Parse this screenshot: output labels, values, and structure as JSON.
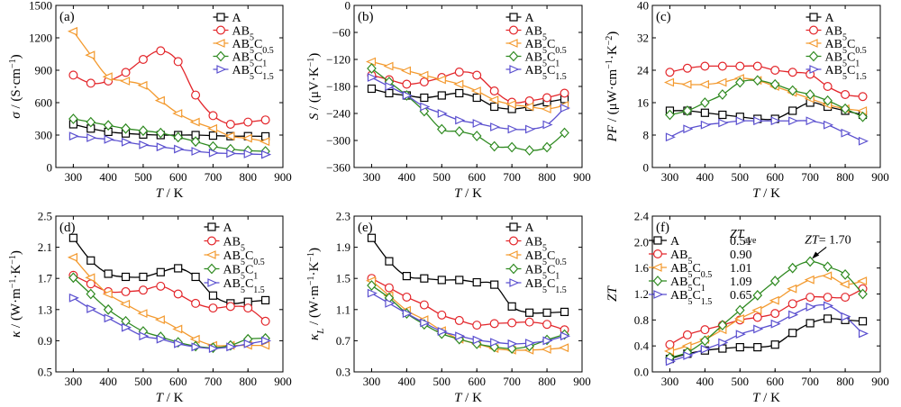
{
  "colors": {
    "A": "#000000",
    "AB5": "#e3262b",
    "AB5C0.5": "#f39a2f",
    "AB5C1": "#2f8a21",
    "AB5C1.5": "#5a4fcf"
  },
  "markers": {
    "A": "square",
    "AB5": "circle",
    "AB5C0.5": "triangle-left",
    "AB5C1": "diamond",
    "AB5C1.5": "triangle-right"
  },
  "chart_data": [
    {
      "type": "line",
      "panel": "(a)",
      "xlabel": "T / K",
      "ylabel": "σ / (S·cm⁻¹)",
      "xlim": [
        250,
        900
      ],
      "ylim": [
        0,
        1500
      ],
      "xticks": [
        300,
        400,
        500,
        600,
        700,
        800,
        900
      ],
      "yticks": [
        0,
        300,
        600,
        900,
        1200,
        1500
      ],
      "legend": "top-right",
      "series": [
        {
          "name": "A",
          "x": [
            300,
            350,
            400,
            450,
            500,
            550,
            600,
            650,
            700,
            750,
            800,
            850
          ],
          "y": [
            400,
            360,
            330,
            315,
            305,
            300,
            300,
            300,
            295,
            290,
            290,
            288
          ]
        },
        {
          "name": "AB5",
          "x": [
            300,
            350,
            400,
            450,
            500,
            550,
            600,
            650,
            700,
            750,
            800,
            850
          ],
          "y": [
            855,
            780,
            800,
            880,
            1000,
            1080,
            980,
            670,
            480,
            400,
            420,
            440
          ]
        },
        {
          "name": "AB5C0.5",
          "x": [
            300,
            350,
            400,
            450,
            500,
            550,
            600,
            650,
            700,
            750,
            800,
            850
          ],
          "y": [
            1260,
            1040,
            840,
            800,
            760,
            620,
            500,
            420,
            360,
            290,
            270,
            240
          ]
        },
        {
          "name": "AB5C1",
          "x": [
            300,
            350,
            400,
            450,
            500,
            550,
            600,
            650,
            700,
            750,
            800,
            850
          ],
          "y": [
            450,
            420,
            390,
            360,
            340,
            320,
            280,
            240,
            195,
            170,
            155,
            150
          ]
        },
        {
          "name": "AB5C1.5",
          "x": [
            300,
            350,
            400,
            450,
            500,
            550,
            600,
            650,
            700,
            750,
            800,
            850
          ],
          "y": [
            290,
            275,
            260,
            235,
            210,
            190,
            170,
            150,
            135,
            130,
            125,
            120
          ]
        }
      ]
    },
    {
      "type": "line",
      "panel": "(b)",
      "xlabel": "T / K",
      "ylabel": "S / (μV·K⁻¹)",
      "xlim": [
        250,
        900
      ],
      "ylim": [
        -360,
        0
      ],
      "xticks": [
        300,
        400,
        500,
        600,
        700,
        800,
        900
      ],
      "yticks": [
        0,
        -60,
        -120,
        -180,
        -240,
        -300,
        -360
      ],
      "legend": "top-right",
      "series": [
        {
          "name": "A",
          "x": [
            300,
            350,
            400,
            450,
            500,
            550,
            600,
            650,
            700,
            750,
            800,
            850
          ],
          "y": [
            -185,
            -195,
            -200,
            -205,
            -200,
            -195,
            -205,
            -225,
            -230,
            -225,
            -215,
            -208
          ]
        },
        {
          "name": "AB5",
          "x": [
            300,
            350,
            400,
            450,
            500,
            550,
            600,
            650,
            700,
            750,
            800,
            850
          ],
          "y": [
            -155,
            -165,
            -175,
            -170,
            -160,
            -148,
            -155,
            -190,
            -215,
            -212,
            -205,
            -195
          ]
        },
        {
          "name": "AB5C0.5",
          "x": [
            300,
            350,
            400,
            450,
            500,
            550,
            600,
            650,
            700,
            750,
            800,
            850
          ],
          "y": [
            -125,
            -135,
            -145,
            -155,
            -165,
            -175,
            -190,
            -210,
            -220,
            -225,
            -230,
            -222
          ]
        },
        {
          "name": "AB5C1",
          "x": [
            300,
            350,
            400,
            450,
            500,
            550,
            600,
            650,
            700,
            750,
            800,
            850
          ],
          "y": [
            -140,
            -170,
            -200,
            -235,
            -275,
            -280,
            -290,
            -313,
            -315,
            -322,
            -315,
            -283
          ]
        },
        {
          "name": "AB5C1.5",
          "x": [
            300,
            350,
            400,
            450,
            500,
            550,
            600,
            650,
            700,
            750,
            800,
            850
          ],
          "y": [
            -160,
            -180,
            -200,
            -225,
            -240,
            -255,
            -262,
            -270,
            -275,
            -275,
            -265,
            -228
          ]
        }
      ]
    },
    {
      "type": "line",
      "panel": "(c)",
      "xlabel": "T / K",
      "ylabel": "PF / (μW·cm⁻¹·K⁻²)",
      "xlim": [
        250,
        900
      ],
      "ylim": [
        0,
        40
      ],
      "xticks": [
        300,
        400,
        500,
        600,
        700,
        800,
        900
      ],
      "yticks": [
        0,
        8,
        16,
        24,
        32,
        40
      ],
      "legend": "top-right",
      "series": [
        {
          "name": "A",
          "x": [
            300,
            350,
            400,
            450,
            500,
            550,
            600,
            650,
            700,
            750,
            800,
            850
          ],
          "y": [
            14,
            14,
            13.5,
            13,
            12.5,
            12,
            12,
            14,
            16,
            15,
            14,
            13
          ]
        },
        {
          "name": "AB5",
          "x": [
            300,
            350,
            400,
            450,
            500,
            550,
            600,
            650,
            700,
            750,
            800,
            850
          ],
          "y": [
            23.5,
            24.5,
            25,
            25,
            25,
            25,
            24,
            23.5,
            23,
            20,
            18,
            17.5
          ]
        },
        {
          "name": "AB5C0.5",
          "x": [
            300,
            350,
            400,
            450,
            500,
            550,
            600,
            650,
            700,
            750,
            800,
            850
          ],
          "y": [
            21,
            20.5,
            20.5,
            21,
            22,
            21.5,
            20,
            18.5,
            17,
            15.5,
            14.5,
            14
          ]
        },
        {
          "name": "AB5C1",
          "x": [
            300,
            350,
            400,
            450,
            500,
            550,
            600,
            650,
            700,
            750,
            800,
            850
          ],
          "y": [
            13,
            14,
            16,
            18,
            21,
            21.5,
            20.5,
            19,
            18,
            16.5,
            14.5,
            12.5
          ]
        },
        {
          "name": "AB5C1.5",
          "x": [
            300,
            350,
            400,
            450,
            500,
            550,
            600,
            650,
            700,
            750,
            800,
            850
          ],
          "y": [
            7.5,
            9.5,
            10.5,
            11,
            11.5,
            11.5,
            11.5,
            11.5,
            11.5,
            10.5,
            8.5,
            6.5
          ]
        }
      ]
    },
    {
      "type": "line",
      "panel": "(d)",
      "xlabel": "T / K",
      "ylabel": "κ / (W·m⁻¹·K⁻¹)",
      "xlim": [
        250,
        900
      ],
      "ylim": [
        0.5,
        2.5
      ],
      "xticks": [
        300,
        400,
        500,
        600,
        700,
        800,
        900
      ],
      "yticks": [
        0.5,
        0.9,
        1.3,
        1.7,
        2.1,
        2.5
      ],
      "legend": "top-right",
      "series": [
        {
          "name": "A",
          "x": [
            300,
            350,
            400,
            450,
            500,
            550,
            600,
            650,
            700,
            750,
            800,
            850
          ],
          "y": [
            2.22,
            1.93,
            1.76,
            1.72,
            1.72,
            1.78,
            1.83,
            1.72,
            1.48,
            1.38,
            1.4,
            1.42
          ]
        },
        {
          "name": "AB5",
          "x": [
            300,
            350,
            400,
            450,
            500,
            550,
            600,
            650,
            700,
            750,
            800,
            850
          ],
          "y": [
            1.74,
            1.63,
            1.53,
            1.53,
            1.55,
            1.6,
            1.5,
            1.38,
            1.32,
            1.34,
            1.32,
            1.15
          ]
        },
        {
          "name": "AB5C0.5",
          "x": [
            300,
            350,
            400,
            450,
            500,
            550,
            600,
            650,
            700,
            750,
            800,
            850
          ],
          "y": [
            1.97,
            1.71,
            1.5,
            1.37,
            1.25,
            1.17,
            1.05,
            0.92,
            0.84,
            0.84,
            0.84,
            0.84
          ]
        },
        {
          "name": "AB5C1",
          "x": [
            300,
            350,
            400,
            450,
            500,
            550,
            600,
            650,
            700,
            750,
            800,
            850
          ],
          "y": [
            1.71,
            1.5,
            1.3,
            1.15,
            1.02,
            0.95,
            0.88,
            0.83,
            0.81,
            0.84,
            0.92,
            0.93
          ]
        },
        {
          "name": "AB5C1.5",
          "x": [
            300,
            350,
            400,
            450,
            500,
            550,
            600,
            650,
            700,
            750,
            800,
            850
          ],
          "y": [
            1.45,
            1.31,
            1.19,
            1.07,
            0.96,
            0.92,
            0.86,
            0.82,
            0.8,
            0.82,
            0.86,
            0.9
          ]
        }
      ]
    },
    {
      "type": "line",
      "panel": "(e)",
      "xlabel": "T / K",
      "ylabel": "κL / (W·m⁻¹·K⁻¹)",
      "xlim": [
        250,
        900
      ],
      "ylim": [
        0.3,
        2.3
      ],
      "xticks": [
        300,
        400,
        500,
        600,
        700,
        800,
        900
      ],
      "yticks": [
        0.3,
        0.7,
        1.1,
        1.5,
        1.9,
        2.3
      ],
      "legend": "top-right",
      "series": [
        {
          "name": "A",
          "x": [
            300,
            350,
            400,
            450,
            500,
            550,
            600,
            650,
            700,
            750,
            800,
            850
          ],
          "y": [
            2.02,
            1.72,
            1.53,
            1.5,
            1.48,
            1.48,
            1.45,
            1.42,
            1.14,
            1.06,
            1.06,
            1.07
          ]
        },
        {
          "name": "AB5",
          "x": [
            300,
            350,
            400,
            450,
            500,
            550,
            600,
            650,
            700,
            750,
            800,
            850
          ],
          "y": [
            1.5,
            1.38,
            1.26,
            1.16,
            1.03,
            0.96,
            0.9,
            0.92,
            0.93,
            0.94,
            0.91,
            0.84
          ]
        },
        {
          "name": "AB5C0.5",
          "x": [
            300,
            350,
            400,
            450,
            500,
            550,
            600,
            650,
            700,
            750,
            800,
            850
          ],
          "y": [
            1.47,
            1.28,
            1.09,
            0.97,
            0.83,
            0.72,
            0.66,
            0.6,
            0.58,
            0.58,
            0.59,
            0.61
          ]
        },
        {
          "name": "AB5C1",
          "x": [
            300,
            350,
            400,
            450,
            500,
            550,
            600,
            650,
            700,
            750,
            800,
            850
          ],
          "y": [
            1.41,
            1.25,
            1.05,
            0.91,
            0.79,
            0.72,
            0.66,
            0.62,
            0.6,
            0.63,
            0.71,
            0.78
          ]
        },
        {
          "name": "AB5C1.5",
          "x": [
            300,
            350,
            400,
            450,
            500,
            550,
            600,
            650,
            700,
            750,
            800,
            850
          ],
          "y": [
            1.31,
            1.18,
            1.05,
            0.93,
            0.82,
            0.76,
            0.71,
            0.68,
            0.66,
            0.67,
            0.7,
            0.76
          ]
        }
      ]
    },
    {
      "type": "line",
      "panel": "(f)",
      "xlabel": "T / K",
      "ylabel": "ZT",
      "xlim": [
        250,
        900
      ],
      "ylim": [
        0,
        2.4
      ],
      "xticks": [
        300,
        400,
        500,
        600,
        700,
        800,
        900
      ],
      "yticks": [
        0,
        0.4,
        0.8,
        1.2,
        1.6,
        2.0,
        2.4
      ],
      "legend": "top-left",
      "zt_ave_header": "ZTave",
      "annotation": "ZT= 1.70",
      "annotation_point": {
        "x": 700,
        "y": 1.7
      },
      "series": [
        {
          "name": "A",
          "zt_ave": "0.51",
          "x": [
            300,
            350,
            400,
            450,
            500,
            550,
            600,
            650,
            700,
            750,
            800,
            850
          ],
          "y": [
            0.2,
            0.28,
            0.33,
            0.36,
            0.38,
            0.38,
            0.42,
            0.6,
            0.75,
            0.82,
            0.8,
            0.78
          ]
        },
        {
          "name": "AB5",
          "zt_ave": "0.90",
          "x": [
            300,
            350,
            400,
            450,
            500,
            550,
            600,
            650,
            700,
            750,
            800,
            850
          ],
          "y": [
            0.42,
            0.57,
            0.65,
            0.72,
            0.8,
            0.84,
            0.9,
            1.05,
            1.15,
            1.15,
            1.15,
            1.28
          ]
        },
        {
          "name": "AB5C0.5",
          "zt_ave": "1.01",
          "x": [
            300,
            350,
            400,
            450,
            500,
            550,
            600,
            650,
            700,
            750,
            800,
            850
          ],
          "y": [
            0.32,
            0.4,
            0.5,
            0.65,
            0.82,
            0.95,
            1.1,
            1.28,
            1.42,
            1.48,
            1.35,
            1.4
          ]
        },
        {
          "name": "AB5C1",
          "zt_ave": "1.09",
          "x": [
            300,
            350,
            400,
            450,
            500,
            550,
            600,
            650,
            700,
            750,
            800,
            850
          ],
          "y": [
            0.22,
            0.3,
            0.48,
            0.72,
            0.95,
            1.18,
            1.4,
            1.6,
            1.7,
            1.62,
            1.5,
            1.2
          ]
        },
        {
          "name": "AB5C1.5",
          "zt_ave": "0.65",
          "x": [
            300,
            350,
            400,
            450,
            500,
            550,
            600,
            650,
            700,
            750,
            800,
            850
          ],
          "y": [
            0.16,
            0.25,
            0.35,
            0.45,
            0.58,
            0.66,
            0.74,
            0.88,
            1.0,
            1.02,
            0.85,
            0.59
          ]
        }
      ]
    }
  ]
}
